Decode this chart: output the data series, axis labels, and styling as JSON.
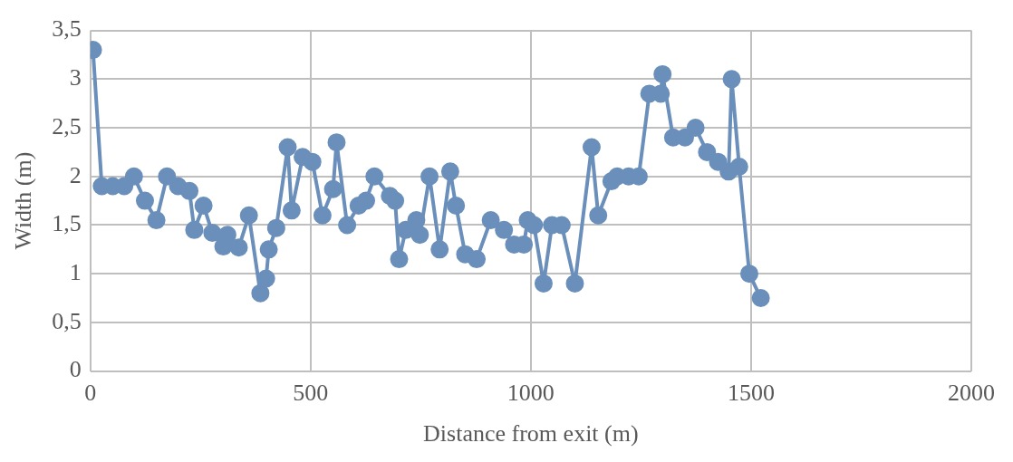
{
  "chart_data": {
    "type": "line",
    "xlabel": "Distance from exit (m)",
    "ylabel": "Width (m)",
    "x": [
      6,
      26,
      51,
      77,
      99,
      124,
      150,
      174,
      199,
      225,
      236,
      257,
      277,
      302,
      311,
      337,
      360,
      386,
      399,
      405,
      422,
      448,
      457,
      482,
      504,
      527,
      551,
      559,
      583,
      609,
      626,
      645,
      680,
      692,
      701,
      716,
      740,
      748,
      770,
      793,
      817,
      830,
      851,
      877,
      909,
      939,
      962,
      984,
      993,
      1007,
      1029,
      1048,
      1070,
      1100,
      1138,
      1153,
      1183,
      1196,
      1222,
      1245,
      1269,
      1295,
      1299,
      1323,
      1350,
      1374,
      1400,
      1425,
      1449,
      1456,
      1473,
      1496,
      1522
    ],
    "series": [
      {
        "color": "#6a8fbb",
        "values": [
          3.3,
          1.9,
          1.9,
          1.9,
          2.0,
          1.75,
          1.55,
          2.0,
          1.9,
          1.85,
          1.45,
          1.7,
          1.42,
          1.28,
          1.4,
          1.27,
          1.6,
          0.8,
          0.95,
          1.25,
          1.47,
          2.3,
          1.65,
          2.2,
          2.15,
          1.6,
          1.87,
          2.35,
          1.5,
          1.7,
          1.75,
          2.0,
          1.8,
          1.75,
          1.15,
          1.45,
          1.55,
          1.4,
          2.0,
          1.25,
          2.05,
          1.7,
          1.2,
          1.15,
          1.55,
          1.45,
          1.3,
          1.3,
          1.55,
          1.5,
          0.9,
          1.5,
          1.5,
          0.9,
          2.3,
          1.6,
          1.95,
          2.0,
          2.0,
          2.0,
          2.85,
          2.85,
          3.05,
          2.4,
          2.4,
          2.5,
          2.25,
          2.15,
          2.05,
          3.0,
          2.1,
          1.0,
          0.75
        ]
      }
    ],
    "xlim": [
      0,
      2000
    ],
    "xticks": [
      0,
      500,
      1000,
      1500,
      2000
    ],
    "ylim": [
      0,
      3.5
    ],
    "yticks": [
      0,
      {
        "value": 0.5,
        "label": "0,5"
      },
      1,
      {
        "value": 1.5,
        "label": "1,5"
      },
      2,
      {
        "value": 2.5,
        "label": "2,5"
      },
      3,
      {
        "value": 3.5,
        "label": "3,5"
      }
    ],
    "grid": true,
    "marker": "circle",
    "line_style": "solid",
    "legend": false
  }
}
